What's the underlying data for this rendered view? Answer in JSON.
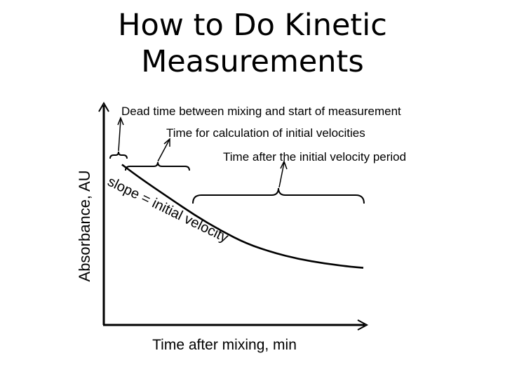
{
  "slide": {
    "title_line1": "How to Do Kinetic",
    "title_line2": "Measurements"
  },
  "chart_data": {
    "type": "line",
    "xlabel": "Time after mixing, min",
    "ylabel": "Absorbance, AU",
    "grid": false,
    "annotations": {
      "dead_time": "Dead time between mixing and start of measurement",
      "initial_velocity_time": "Time for calculation of initial velocities",
      "after_period": "Time after the initial velocity period",
      "slope": "slope = initial velocity"
    },
    "series": [
      {
        "x": [
          0.07,
          0.15,
          0.25,
          0.35,
          0.45,
          0.55,
          0.65,
          0.75,
          0.85,
          0.95,
          1.0
        ],
        "y": [
          0.73,
          0.66,
          0.58,
          0.5,
          0.43,
          0.37,
          0.33,
          0.3,
          0.28,
          0.265,
          0.26
        ]
      }
    ],
    "colors": {
      "curve": "#000000",
      "axes": "#000000"
    }
  }
}
